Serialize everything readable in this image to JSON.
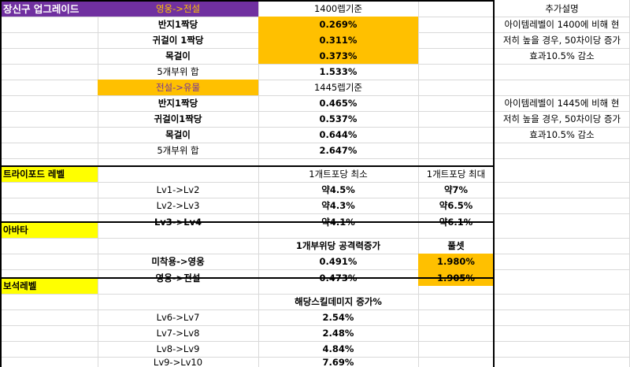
{
  "sec1": {
    "title": "장신구 업그레이드",
    "sub": "영웅->전설",
    "basis": "1400렙기준",
    "rows": [
      {
        "label": "반지1짝당",
        "value": "0.269%"
      },
      {
        "label": "귀걸이 1짝당",
        "value": "0.311%"
      },
      {
        "label": "목걸이",
        "value": "0.373%"
      }
    ],
    "sum_label": "5개부위 합",
    "sum_value": "1.533%",
    "note_title": "추가설명",
    "note_lines": [
      "아이템레벨이 1400에 비해 현",
      "저히 높을 경우, 50차이당 증가",
      "효과10.5% 감소"
    ]
  },
  "sec2": {
    "sub": "전설->유물",
    "basis": "1445렙기준",
    "rows": [
      {
        "label": "반지1짝당",
        "value": "0.465%"
      },
      {
        "label": "귀걸이1짝당",
        "value": "0.537%"
      },
      {
        "label": "목걸이",
        "value": "0.644%"
      }
    ],
    "sum_label": "5개부위 합",
    "sum_value": "2.647%",
    "note_lines": [
      "아이템레벨이 1445에 비해 현",
      "저히 높을 경우, 50차이당 증가",
      "효과10.5% 감소"
    ]
  },
  "sec3": {
    "title": "트라이포드 레벨",
    "col_min": "1개트포당 최소",
    "col_max": "1개트포당 최대",
    "rows": [
      {
        "label": "Lv1->Lv2",
        "min": "약4.5%",
        "max": "약7%"
      },
      {
        "label": "Lv2->Lv3",
        "min": "약4.3%",
        "max": "약6.5%"
      },
      {
        "label": "Lv3->Lv4",
        "min": "약4.1%",
        "max": "약6.1%"
      }
    ]
  },
  "sec4": {
    "title": "아바타",
    "col_part": "1개부위당 공격력증가",
    "col_set": "풀셋",
    "rows": [
      {
        "label": "미착용->영웅",
        "part": "0.491%",
        "set": "1.980%"
      },
      {
        "label": "영웅->전설",
        "part": "0.473%",
        "set": "1.905%"
      }
    ]
  },
  "sec5": {
    "title": "보석레벨",
    "col": "해당스킬데미지 증가%",
    "rows": [
      {
        "label": "Lv6->Lv7",
        "value": "2.54%"
      },
      {
        "label": "Lv7->Lv8",
        "value": "2.48%"
      },
      {
        "label": "Lv8->Lv9",
        "value": "4.84%"
      },
      {
        "label": "Lv9->Lv10",
        "value": "7.69%"
      }
    ]
  },
  "colors": {
    "purple": "#7030a0",
    "gold": "#ffc000",
    "yellow": "#ffff00",
    "grid": "#d9d9d9"
  }
}
